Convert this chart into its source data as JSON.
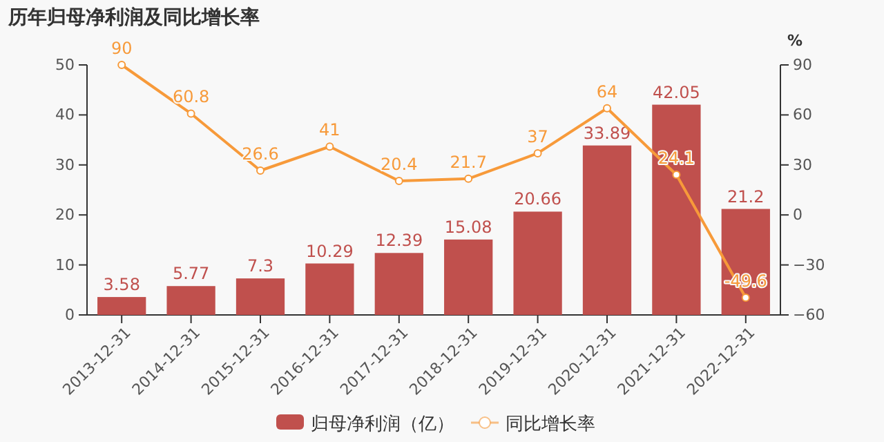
{
  "chart_data": {
    "type": "bar",
    "title": "历年归母净利润及同比增长率",
    "y2label": "%",
    "categories": [
      "2013-12-31",
      "2014-12-31",
      "2015-12-31",
      "2016-12-31",
      "2017-12-31",
      "2018-12-31",
      "2019-12-31",
      "2020-12-31",
      "2021-12-31",
      "2022-12-31"
    ],
    "series": [
      {
        "name": "归母净利润（亿）",
        "color": "#c0504d",
        "values": [
          3.58,
          5.77,
          7.3,
          10.29,
          12.39,
          15.08,
          20.66,
          33.89,
          42.05,
          21.2
        ]
      },
      {
        "name": "同比增长率",
        "type": "line",
        "axis": "y2",
        "color": "#f79a3a",
        "values": [
          90,
          60.8,
          26.6,
          41,
          20.4,
          21.7,
          37,
          64,
          24.1,
          -49.6
        ]
      }
    ],
    "ylim": [
      0,
      50
    ],
    "yticks": [
      0,
      10,
      20,
      30,
      40,
      50
    ],
    "y2lim": [
      -60,
      90
    ],
    "y2ticks": [
      {
        "value": -60,
        "label": "−60"
      },
      {
        "value": -30,
        "label": "−30"
      },
      0,
      30,
      60,
      90
    ],
    "data_labels": true,
    "grid": false,
    "legend": "bottom",
    "marker": "circle",
    "line_style": "solid"
  }
}
